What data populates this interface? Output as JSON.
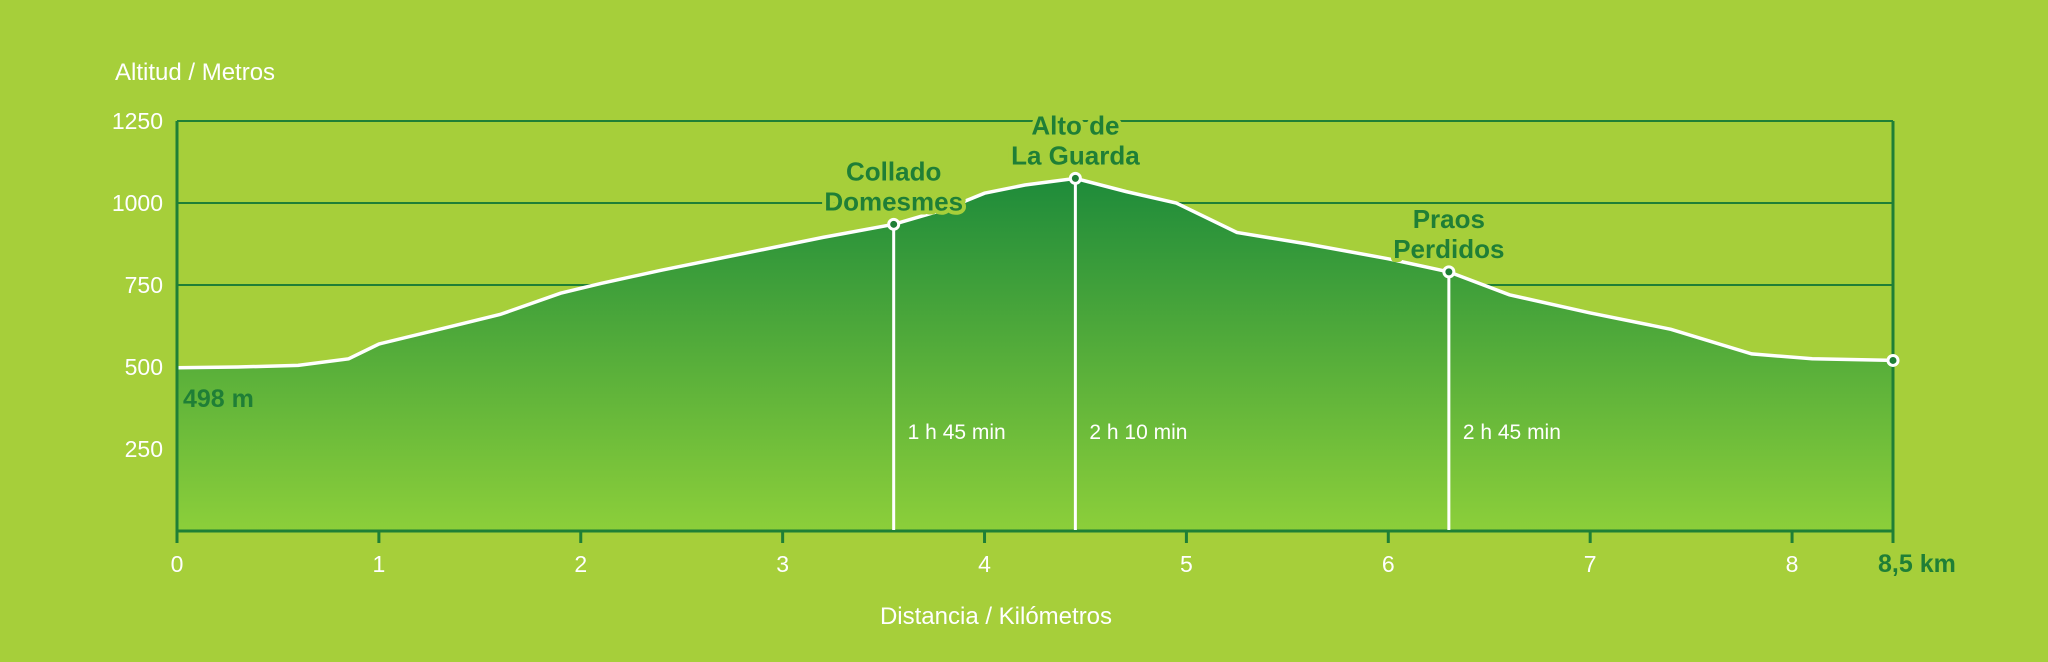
{
  "chart_data": {
    "type": "area",
    "ylabel": "Altitud / Metros",
    "xlabel": "Distancia / Kilómetros",
    "xlim": [
      0,
      8.5
    ],
    "ylim": [
      0,
      1250
    ],
    "x_ticks": [
      {
        "value": 0,
        "label": "0"
      },
      {
        "value": 1,
        "label": "1"
      },
      {
        "value": 2,
        "label": "2"
      },
      {
        "value": 3,
        "label": "3"
      },
      {
        "value": 4,
        "label": "4"
      },
      {
        "value": 5,
        "label": "5"
      },
      {
        "value": 6,
        "label": "6"
      },
      {
        "value": 7,
        "label": "7"
      },
      {
        "value": 8,
        "label": "8"
      },
      {
        "value": 8.5,
        "label": "8,5 km"
      }
    ],
    "y_ticks": [
      {
        "value": 250,
        "label": "250"
      },
      {
        "value": 500,
        "label": "500"
      },
      {
        "value": 750,
        "label": "750"
      },
      {
        "value": 1000,
        "label": "1000"
      },
      {
        "value": 1250,
        "label": "1250"
      }
    ],
    "grid": true,
    "start_label": "498 m",
    "profile": {
      "x": [
        0,
        0.3,
        0.6,
        0.85,
        1.0,
        1.3,
        1.6,
        1.9,
        2.1,
        2.4,
        2.8,
        3.2,
        3.55,
        3.8,
        4.0,
        4.2,
        4.45,
        4.7,
        4.95,
        5.25,
        5.6,
        6.0,
        6.3,
        6.6,
        7.0,
        7.4,
        7.8,
        8.1,
        8.5
      ],
      "y": [
        498,
        500,
        505,
        525,
        570,
        615,
        660,
        725,
        755,
        795,
        845,
        895,
        935,
        980,
        1030,
        1055,
        1075,
        1035,
        1000,
        910,
        875,
        830,
        790,
        720,
        665,
        615,
        540,
        525,
        520
      ]
    },
    "waypoints": [
      {
        "x": 3.55,
        "y": 935,
        "label_lines": [
          "Collado",
          "Domesmes"
        ],
        "time": "1 h 45 min"
      },
      {
        "x": 4.45,
        "y": 1075,
        "label_lines": [
          "Alto de",
          "La Guarda"
        ],
        "time": "2 h 10 min"
      },
      {
        "x": 6.3,
        "y": 790,
        "label_lines": [
          "Praos",
          "Perdidos"
        ],
        "time": "2 h 45 min"
      }
    ],
    "end_point": {
      "x": 8.5,
      "y": 520
    }
  },
  "colors": {
    "background": "#a6cf3a",
    "axis": "#1f7f36",
    "fill_top": "#1e8b3a",
    "fill_bottom": "#8ccf3a",
    "line": "#ffffff",
    "label_green": "#1f7f36"
  }
}
